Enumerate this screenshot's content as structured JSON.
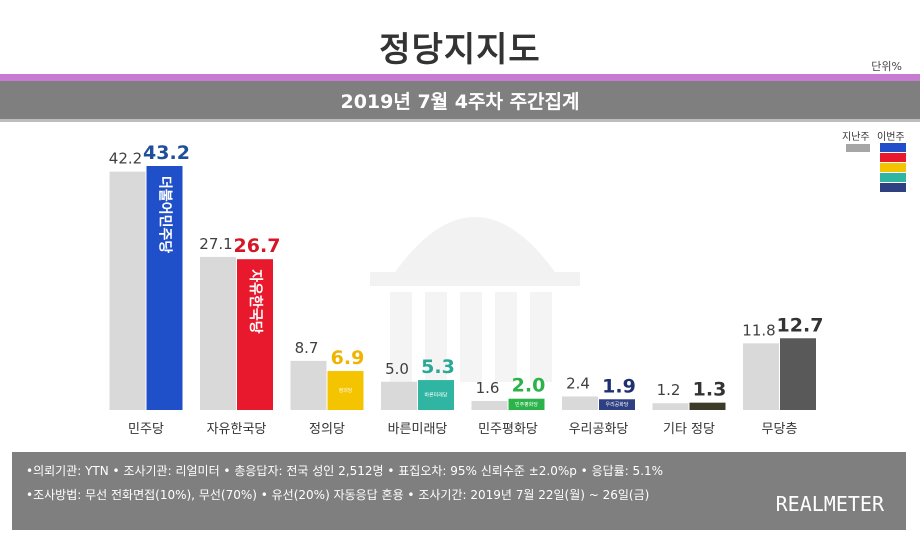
{
  "header": {
    "title": "정당지지도",
    "unit": "단위%",
    "subtitle": "2019년 7월 4주차 주간집계"
  },
  "legend": {
    "prev_label": "지난주",
    "cur_label": "이번주",
    "cur_colors": [
      "#1f4fc9",
      "#e8192c",
      "#f5c400",
      "#2fb5a2",
      "#2e3f82"
    ]
  },
  "colors": {
    "prev_bar": "#d9d9d9",
    "accent_purple": "#c77bd3",
    "band_gray": "#7f7f7f"
  },
  "chart_data": {
    "type": "bar",
    "categories": [
      "민주당",
      "자유한국당",
      "정의당",
      "바른미래당",
      "민주평화당",
      "우리공화당",
      "기타 정당",
      "무당층"
    ],
    "series": [
      {
        "name": "지난주",
        "values": [
          42.2,
          27.1,
          8.7,
          5.0,
          1.6,
          2.4,
          1.2,
          11.8
        ]
      },
      {
        "name": "이번주",
        "values": [
          43.2,
          26.7,
          6.9,
          5.3,
          2.0,
          1.9,
          1.3,
          12.7
        ]
      }
    ],
    "cur_bar_colors": [
      "#1f4fc9",
      "#e8192c",
      "#f5c400",
      "#2fb5a2",
      "#2bb34a",
      "#2e3f82",
      "#3e3a2a",
      "#595959"
    ],
    "cur_label_colors": [
      "#1f4e9a",
      "#d41626",
      "#f0b400",
      "#2aa896",
      "#2bb34a",
      "#1f3070",
      "#333333",
      "#333333"
    ],
    "bar_marks": [
      "더불어민주당",
      "자유한국당",
      "정의당",
      "바른미래당",
      "민주평화당",
      "우리공화당",
      "",
      ""
    ],
    "ylim": [
      0,
      50
    ]
  },
  "footer": {
    "line1": "•의뢰기관: YTN • 조사기관: 리얼미터 • 총응답자: 전국 성인 2,512명 • 표집오차: 95% 신뢰수준 ±2.0%p • 응답률: 5.1%",
    "line2": "•조사방법: 무선 전화면접(10%), 무선(70%) • 유선(20%) 자동응답 혼용  • 조사기간: 2019년 7월 22일(월) ~ 26일(금)",
    "logo": "REALMETER"
  }
}
